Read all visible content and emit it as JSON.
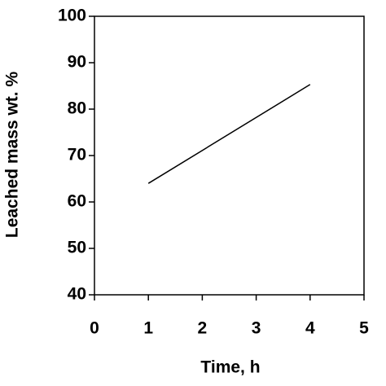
{
  "chart_data": {
    "type": "line",
    "x_label": "Time, h",
    "y_label": "Leached mass wt. %",
    "x": [
      1,
      4
    ],
    "series": [
      {
        "color": "#000000",
        "values": [
          64,
          85.3
        ]
      }
    ],
    "xlim": [
      0,
      5
    ],
    "xticks": [
      0,
      1,
      2,
      3,
      4,
      5
    ],
    "ylim": [
      40,
      100
    ],
    "yticks": [
      40,
      50,
      60,
      70,
      80,
      90,
      100
    ],
    "grid": false
  }
}
